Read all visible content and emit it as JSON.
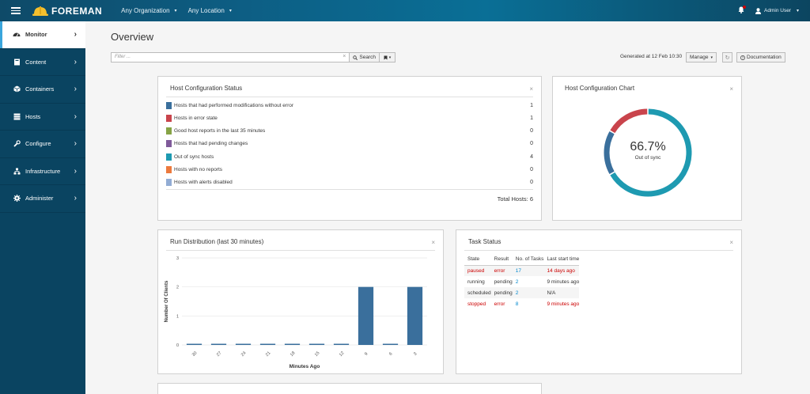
{
  "topbar": {
    "brand": "FOREMAN",
    "organization": "Any Organization",
    "location": "Any Location",
    "user": "Admin User"
  },
  "sidebar": {
    "items": [
      {
        "label": "Monitor",
        "icon": "dashboard-icon",
        "active": true
      },
      {
        "label": "Content",
        "icon": "book-icon"
      },
      {
        "label": "Containers",
        "icon": "cube-icon"
      },
      {
        "label": "Hosts",
        "icon": "server-icon"
      },
      {
        "label": "Configure",
        "icon": "wrench-icon"
      },
      {
        "label": "Infrastructure",
        "icon": "network-icon"
      },
      {
        "label": "Administer",
        "icon": "gear-icon"
      }
    ]
  },
  "page": {
    "title": "Overview",
    "search_placeholder": "Filter ...",
    "search_label": "Search",
    "generated": "Generated at 12 Feb 10:30",
    "manage_label": "Manage",
    "documentation_label": "Documentation"
  },
  "host_config_status": {
    "title": "Host Configuration Status",
    "rows": [
      {
        "label": "Hosts that had performed modifications without error",
        "count": "1",
        "color": "#3a6f9c"
      },
      {
        "label": "Hosts in error state",
        "count": "1",
        "color": "#c9444c"
      },
      {
        "label": "Good host reports in the last 35 minutes",
        "count": "0",
        "color": "#86a346"
      },
      {
        "label": "Hosts that had pending changes",
        "count": "0",
        "color": "#7f5a9a"
      },
      {
        "label": "Out of sync hosts",
        "count": "4",
        "color": "#1e9ab1"
      },
      {
        "label": "Hosts with no reports",
        "count": "0",
        "color": "#ec7a3e"
      },
      {
        "label": "Hosts with alerts disabled",
        "count": "0",
        "color": "#92acd4"
      }
    ],
    "total": "Total Hosts: 6"
  },
  "host_config_chart": {
    "title": "Host Configuration Chart",
    "value": "66.7%",
    "label": "Out of sync",
    "segments": [
      {
        "name": "Out of sync",
        "value": 4,
        "color": "#1e9ab1"
      },
      {
        "name": "Modified",
        "value": 1,
        "color": "#3a6f9c"
      },
      {
        "name": "Error",
        "value": 1,
        "color": "#c9444c"
      }
    ]
  },
  "run_distribution": {
    "title": "Run Distribution (last 30 minutes)"
  },
  "chart_data": {
    "type": "bar",
    "categories": [
      "30",
      "27",
      "24",
      "21",
      "18",
      "15",
      "12",
      "9",
      "6",
      "3"
    ],
    "values": [
      0,
      0,
      0,
      0,
      0,
      0,
      0,
      2,
      0,
      2
    ],
    "xlabel": "Minutes Ago",
    "ylabel": "Number Of Clients",
    "ylim": [
      0,
      3
    ],
    "yticks": [
      "0",
      "1",
      "2",
      "3"
    ],
    "color": "#3a6f9c",
    "grid": true
  },
  "task_status": {
    "title": "Task Status",
    "headers": [
      "State",
      "Result",
      "No. of Tasks",
      "Last start time"
    ],
    "rows": [
      {
        "state": "paused",
        "result": "error",
        "count": "17",
        "time": "14 days ago",
        "alert": true
      },
      {
        "state": "running",
        "result": "pending",
        "count": "2",
        "time": "9 minutes ago",
        "alert": false
      },
      {
        "state": "scheduled",
        "result": "pending",
        "count": "2",
        "time": "N/A",
        "alert": false
      },
      {
        "state": "stopped",
        "result": "error",
        "count": "8",
        "time": "9 minutes ago",
        "alert": true
      }
    ]
  }
}
